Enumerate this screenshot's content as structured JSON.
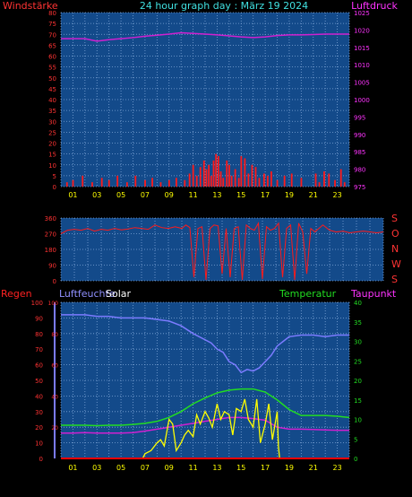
{
  "header": {
    "title": "24 hour graph day : März 19 2024",
    "left_label": "Windstärke",
    "right_label": "Luftdruck"
  },
  "colors": {
    "background": "#000000",
    "plot_bg": "#134a8a",
    "grid": "#7fa6d8",
    "wind": "#ff1a1a",
    "pressure": "#d020d0",
    "direction": "#ff1a1a",
    "humidity": "#7b7bff",
    "solar": "#ffff00",
    "temperature": "#22dd22",
    "dewpoint": "#d020d0",
    "rain": "#ff0000",
    "axis_text_left": "#ff3333",
    "axis_text_right": "#ff33ff",
    "xtick_text": "#ffff00",
    "title_text": "#40e0e0"
  },
  "direction_labels": [
    "S",
    "O",
    "N",
    "W",
    "S"
  ],
  "bottom_labels": {
    "regen": "Regen",
    "luftfeuchte": "Luftfeuchte",
    "solar": "Solar",
    "temperatur": "Temperatur",
    "taupunkt": "Taupunkt"
  },
  "chart_data": [
    {
      "type": "bar",
      "title": "24 hour graph day : März 19 2024",
      "xlabel": "",
      "ylabel": "Windstärke",
      "y2label": "Luftdruck",
      "xticks": [
        "01",
        "03",
        "05",
        "07",
        "09",
        "11",
        "13",
        "15",
        "17",
        "19",
        "21",
        "23"
      ],
      "ylim": [
        0,
        80
      ],
      "y2lim": [
        975,
        1025
      ],
      "yticks": [
        0,
        5,
        10,
        15,
        20,
        25,
        30,
        35,
        40,
        45,
        50,
        55,
        60,
        65,
        70,
        75,
        80
      ],
      "y2ticks": [
        975,
        980,
        985,
        990,
        995,
        1000,
        1005,
        1010,
        1015,
        1020,
        1025
      ],
      "series": [
        {
          "name": "Windstärke",
          "kind": "bar",
          "x": [
            0.5,
            1,
            1.8,
            2.6,
            3.4,
            4,
            4.7,
            5.5,
            6.2,
            7,
            7.6,
            8.3,
            9,
            9.6,
            10.3,
            10.7,
            11,
            11.3,
            11.6,
            11.9,
            12.1,
            12.3,
            12.5,
            12.7,
            12.9,
            13.1,
            13.3,
            13.5,
            13.8,
            14,
            14.2,
            14.5,
            14.8,
            15,
            15.3,
            15.6,
            15.9,
            16.2,
            16.5,
            16.9,
            17.2,
            17.5,
            18,
            18.6,
            19.2,
            20,
            21.2,
            21.5,
            21.9,
            22.3,
            22.8,
            23.3,
            23.6
          ],
          "values": [
            2,
            3,
            5,
            2,
            4,
            3,
            5,
            2,
            5,
            3,
            4,
            2,
            3,
            4,
            3,
            6,
            10,
            5,
            9,
            12,
            8,
            10,
            5,
            12,
            15,
            14,
            7,
            4,
            12,
            10,
            5,
            8,
            4,
            14,
            13,
            6,
            10,
            9,
            4,
            6,
            5,
            7,
            3,
            5,
            6,
            4,
            6,
            2,
            7,
            6,
            3,
            8,
            2
          ]
        },
        {
          "name": "Luftdruck",
          "kind": "line",
          "x": [
            0,
            1,
            2,
            3,
            4,
            5,
            6,
            7,
            8,
            9,
            10,
            11,
            12,
            13,
            14,
            15,
            16,
            17,
            18,
            19,
            20,
            21,
            22,
            23,
            24
          ],
          "values": [
            1017.5,
            1017.5,
            1017.5,
            1016.8,
            1017.2,
            1017.5,
            1017.8,
            1018.2,
            1018.5,
            1018.8,
            1019.2,
            1019.0,
            1018.8,
            1018.6,
            1018.3,
            1018.0,
            1017.8,
            1018.0,
            1018.4,
            1018.6,
            1018.6,
            1018.7,
            1018.8,
            1018.8,
            1018.8
          ]
        }
      ]
    },
    {
      "type": "line",
      "ylabel": "",
      "ylim": [
        0,
        360
      ],
      "yticks": [
        0,
        90,
        180,
        270,
        360
      ],
      "series": [
        {
          "name": "Windrichtung",
          "x": [
            0,
            0.5,
            1,
            1.5,
            2,
            2.5,
            3,
            3.5,
            4,
            4.5,
            5,
            5.5,
            6,
            6.5,
            7,
            7.5,
            8,
            8.5,
            9,
            9.3,
            9.6,
            9.9,
            10.2,
            10.5,
            10.8,
            11.1,
            11.4,
            11.7,
            12,
            12.3,
            12.6,
            12.9,
            13.2,
            13.5,
            13.8,
            14.1,
            14.4,
            14.7,
            15,
            15.3,
            15.6,
            15.9,
            16.2,
            16.5,
            16.8,
            17.1,
            17.4,
            17.7,
            18,
            18.3,
            18.6,
            18.9,
            19.5,
            20,
            20.5,
            21,
            21.5,
            22,
            22.5,
            23,
            23.5,
            24
          ],
          "values": [
            270,
            290,
            295,
            290,
            300,
            285,
            295,
            290,
            300,
            292,
            297,
            305,
            300,
            295,
            320,
            305,
            300,
            310,
            300,
            320,
            305,
            20,
            300,
            310,
            5,
            300,
            320,
            315,
            40,
            300,
            20,
            300,
            310,
            5,
            320,
            300,
            290,
            330,
            10,
            310,
            290,
            300,
            330,
            20,
            300,
            320,
            5,
            330,
            280,
            40,
            300,
            280,
            320,
            290,
            280,
            285,
            275,
            280,
            285,
            280,
            275,
            280
          ]
        }
      ]
    },
    {
      "type": "line",
      "ylabel": "Regen",
      "y2label": "Temperatur",
      "xticks": [
        "01",
        "03",
        "05",
        "07",
        "09",
        "11",
        "13",
        "15",
        "17",
        "19",
        "21",
        "23"
      ],
      "ylim": [
        0,
        100
      ],
      "y2lim": [
        0,
        40
      ],
      "yticks": [
        0,
        10,
        20,
        30,
        40,
        50,
        60,
        70,
        80,
        90,
        100
      ],
      "y2ticks": [
        0,
        5,
        10,
        15,
        20,
        25,
        30,
        35,
        40
      ],
      "series": [
        {
          "name": "Luftfeuchte",
          "x": [
            0,
            1,
            2,
            3,
            4,
            5,
            6,
            7,
            8,
            9,
            10,
            11,
            12,
            12.5,
            13,
            13.5,
            14,
            14.5,
            15,
            15.5,
            16,
            16.5,
            17,
            17.5,
            18,
            18.5,
            19,
            20,
            21,
            22,
            23,
            24
          ],
          "values": [
            92,
            92,
            92,
            91,
            91,
            90,
            90,
            90,
            89,
            88,
            85,
            80,
            76,
            74,
            70,
            68,
            62,
            60,
            55,
            57,
            56,
            58,
            62,
            66,
            72,
            75,
            78,
            79,
            79,
            78,
            79,
            79
          ]
        },
        {
          "name": "Solar",
          "x": [
            6.8,
            7,
            7.5,
            8,
            8.3,
            8.6,
            9,
            9.3,
            9.6,
            10,
            10.3,
            10.6,
            11,
            11.3,
            11.6,
            12,
            12.3,
            12.6,
            13,
            13.3,
            13.6,
            14,
            14.3,
            14.6,
            15,
            15.3,
            15.6,
            16,
            16.3,
            16.6,
            17,
            17.3,
            17.6,
            18,
            18.1,
            18.2
          ],
          "values": [
            0,
            3,
            5,
            10,
            12,
            8,
            25,
            22,
            5,
            10,
            15,
            18,
            14,
            28,
            22,
            30,
            26,
            20,
            35,
            25,
            30,
            28,
            15,
            32,
            30,
            38,
            25,
            20,
            38,
            10,
            22,
            35,
            12,
            30,
            8,
            0
          ]
        },
        {
          "name": "Temperatur",
          "x": [
            0,
            1,
            2,
            3,
            4,
            5,
            6,
            7,
            8,
            9,
            10,
            11,
            12,
            13,
            14,
            15,
            16,
            17,
            18,
            19,
            20,
            21,
            22,
            23,
            24
          ],
          "values": [
            8.5,
            8.5,
            8.5,
            8.4,
            8.5,
            8.5,
            8.7,
            9,
            9.5,
            10.5,
            12,
            14,
            15.5,
            16.8,
            17.5,
            17.8,
            17.8,
            17,
            15,
            12.5,
            11,
            11,
            11,
            10.8,
            10.5
          ]
        },
        {
          "name": "Taupunkt",
          "x": [
            0,
            1,
            2,
            3,
            4,
            5,
            6,
            7,
            8,
            9,
            10,
            11,
            12,
            13,
            14,
            15,
            16,
            17,
            18,
            19,
            20,
            21,
            22,
            23,
            24
          ],
          "values": [
            6.5,
            6.5,
            6.6,
            6.5,
            6.5,
            6.5,
            6.6,
            7,
            7.5,
            8,
            8.5,
            9,
            9.5,
            10,
            10.5,
            10.5,
            10.2,
            9.8,
            8,
            7.5,
            7.5,
            7.4,
            7.3,
            7.2,
            7.2
          ]
        },
        {
          "name": "Regen",
          "x": [
            0,
            24
          ],
          "values": [
            0,
            0
          ]
        }
      ]
    }
  ]
}
